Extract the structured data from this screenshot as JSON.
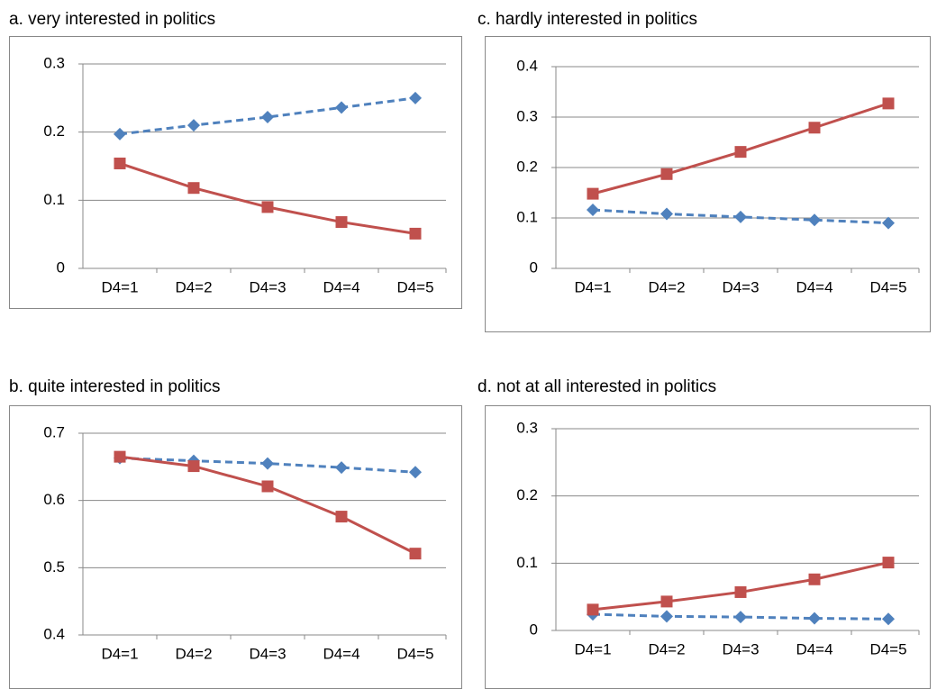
{
  "chart_data": [
    {
      "type": "line",
      "title": "a. very interested in politics",
      "categories": [
        "D4=1",
        "D4=2",
        "D4=3",
        "D4=4",
        "D4=5"
      ],
      "ylim": [
        0,
        0.3
      ],
      "yticks": [
        0,
        0.1,
        0.2,
        0.3
      ],
      "grid": true,
      "series": [
        {
          "color": "#4f81bd",
          "dashed": true,
          "marker": "diamond",
          "values": [
            0.197,
            0.21,
            0.222,
            0.236,
            0.25
          ]
        },
        {
          "color": "#c0504d",
          "dashed": false,
          "marker": "square",
          "values": [
            0.154,
            0.118,
            0.09,
            0.068,
            0.051
          ]
        }
      ]
    },
    {
      "type": "line",
      "title": "c. hardly interested in politics",
      "categories": [
        "D4=1",
        "D4=2",
        "D4=3",
        "D4=4",
        "D4=5"
      ],
      "ylim": [
        0,
        0.4
      ],
      "yticks": [
        0,
        0.1,
        0.2,
        0.3,
        0.4
      ],
      "grid": true,
      "series": [
        {
          "color": "#4f81bd",
          "dashed": true,
          "marker": "diamond",
          "values": [
            0.116,
            0.108,
            0.102,
            0.096,
            0.09
          ]
        },
        {
          "color": "#c0504d",
          "dashed": false,
          "marker": "square",
          "values": [
            0.148,
            0.187,
            0.231,
            0.279,
            0.327
          ]
        }
      ]
    },
    {
      "type": "line",
      "title": "b. quite interested in politics",
      "categories": [
        "D4=1",
        "D4=2",
        "D4=3",
        "D4=4",
        "D4=5"
      ],
      "ylim": [
        0.4,
        0.7
      ],
      "yticks": [
        0.4,
        0.5,
        0.6,
        0.7
      ],
      "grid": true,
      "series": [
        {
          "color": "#4f81bd",
          "dashed": true,
          "marker": "diamond",
          "values": [
            0.663,
            0.659,
            0.655,
            0.649,
            0.642
          ]
        },
        {
          "color": "#c0504d",
          "dashed": false,
          "marker": "square",
          "values": [
            0.665,
            0.651,
            0.621,
            0.576,
            0.521
          ]
        }
      ]
    },
    {
      "type": "line",
      "title": "d. not at all interested in politics",
      "categories": [
        "D4=1",
        "D4=2",
        "D4=3",
        "D4=4",
        "D4=5"
      ],
      "ylim": [
        0,
        0.3
      ],
      "yticks": [
        0,
        0.1,
        0.2,
        0.3
      ],
      "grid": true,
      "series": [
        {
          "color": "#4f81bd",
          "dashed": true,
          "marker": "diamond",
          "values": [
            0.024,
            0.021,
            0.02,
            0.018,
            0.017
          ]
        },
        {
          "color": "#c0504d",
          "dashed": false,
          "marker": "square",
          "values": [
            0.031,
            0.043,
            0.057,
            0.076,
            0.101
          ]
        }
      ]
    }
  ]
}
